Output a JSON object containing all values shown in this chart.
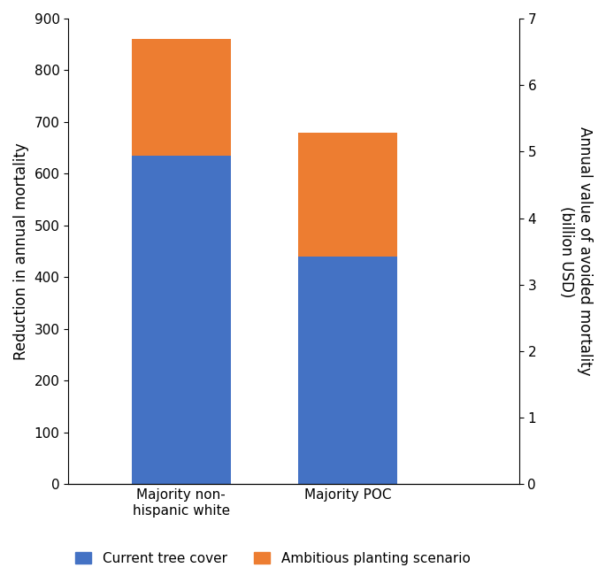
{
  "categories": [
    "Majority non-\nhispanic white",
    "Majority POC"
  ],
  "blue_values": [
    635,
    440
  ],
  "orange_values": [
    225,
    240
  ],
  "blue_color": "#4472C4",
  "orange_color": "#ED7D31",
  "ylabel_left": "Reduction in annual mortality",
  "ylabel_right": "Annual value of avoided mortality\n(billion USD)",
  "ylim_left": [
    0,
    900
  ],
  "ylim_right": [
    0,
    7
  ],
  "yticks_left": [
    0,
    100,
    200,
    300,
    400,
    500,
    600,
    700,
    800,
    900
  ],
  "yticks_right": [
    0,
    1,
    2,
    3,
    4,
    5,
    6,
    7
  ],
  "legend_labels": [
    "Current tree cover",
    "Ambitious planting scenario"
  ],
  "bar_width": 0.22,
  "bar_positions": [
    0.25,
    0.62
  ],
  "xlim": [
    0.0,
    1.0
  ],
  "background_color": "#ffffff",
  "tick_fontsize": 11,
  "label_fontsize": 12
}
